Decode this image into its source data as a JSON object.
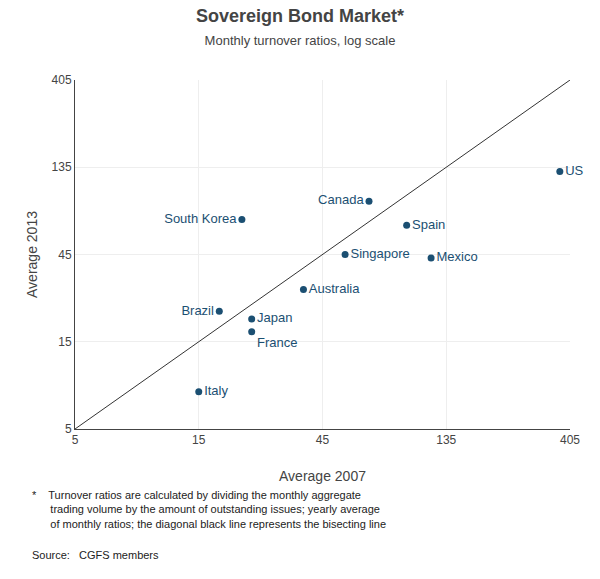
{
  "chart_data": {
    "type": "scatter",
    "title": "Sovereign Bond Market*",
    "subtitle": "Monthly turnover ratios, log scale",
    "xlabel": "Average 2007",
    "ylabel": "Average 2013",
    "color": "#1b4f72",
    "points": [
      {
        "label": "US",
        "x": 370,
        "y": 128,
        "label_position": "middle right"
      },
      {
        "label": "Canada",
        "x": 68,
        "y": 88,
        "label_position": "middle left"
      },
      {
        "label": "South Korea",
        "x": 22,
        "y": 70,
        "label_position": "middle left"
      },
      {
        "label": "Spain",
        "x": 95,
        "y": 65,
        "label_position": "middle right"
      },
      {
        "label": "Singapore",
        "x": 55,
        "y": 45,
        "label_position": "middle right"
      },
      {
        "label": "Mexico",
        "x": 118,
        "y": 43,
        "label_position": "middle right"
      },
      {
        "label": "Australia",
        "x": 38,
        "y": 29,
        "label_position": "middle right"
      },
      {
        "label": "Brazil",
        "x": 18,
        "y": 22,
        "label_position": "middle left"
      },
      {
        "label": "Japan",
        "x": 24,
        "y": 20,
        "label_position": "middle right"
      },
      {
        "label": "France",
        "x": 24,
        "y": 17,
        "label_position": "bottom right"
      },
      {
        "label": "Italy",
        "x": 15,
        "y": 8,
        "label_position": "middle right"
      }
    ],
    "bisect_line": {
      "x": [
        5,
        405
      ],
      "y": [
        5,
        405
      ],
      "color": "#333333"
    },
    "xlim": [
      5,
      405
    ],
    "ylim": [
      5,
      405
    ],
    "xticks": [
      5,
      15,
      45,
      135,
      405
    ],
    "yticks": [
      5,
      15,
      45,
      135,
      405
    ],
    "log": true,
    "grid": true,
    "footnote": [
      "*    Turnover ratios are calculated by dividing the monthly aggregate",
      "      trading volume by the amount of outstanding issues; yearly average",
      "      of monthly ratios; the diagonal black line represents the bisecting line"
    ],
    "source_label": "Source:",
    "source_text": "   CGFS members"
  }
}
